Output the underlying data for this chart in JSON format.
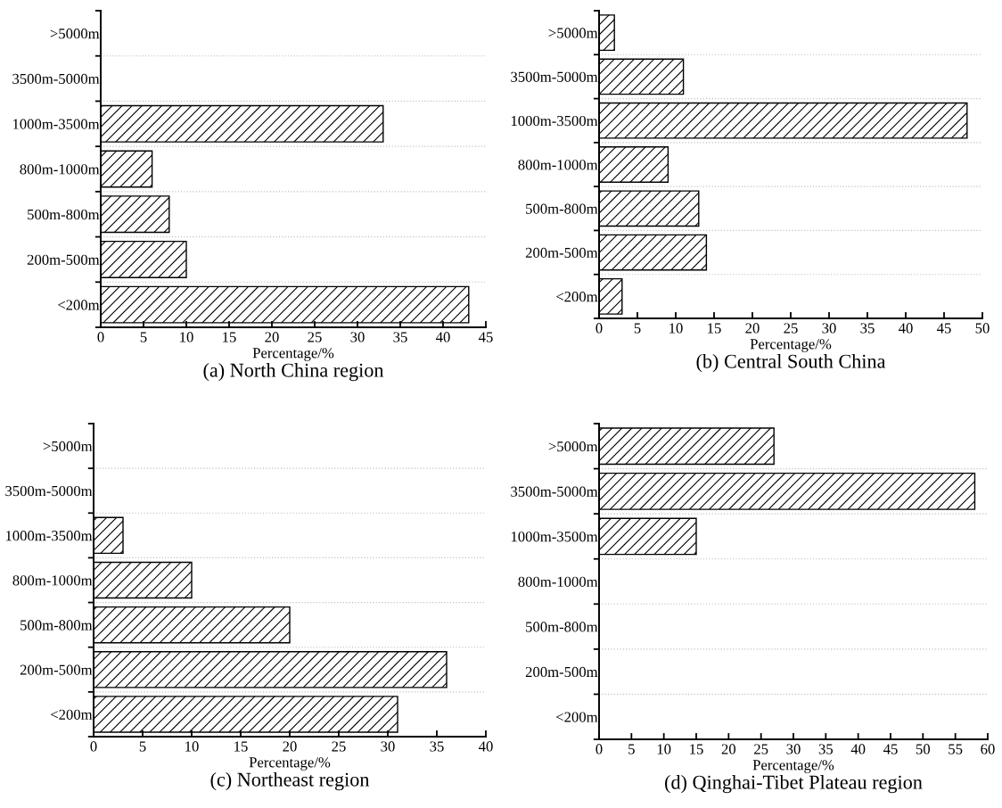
{
  "chart_data": [
    {
      "type": "bar",
      "orientation": "horizontal",
      "title": "(a) North China region",
      "xlabel": "Percentage/%",
      "categories": [
        ">5000m",
        "3500m-5000m",
        "1000m-3500m",
        "800m-1000m",
        "500m-800m",
        "200m-500m",
        "<200m"
      ],
      "values": [
        null,
        null,
        33,
        6,
        8,
        10,
        43
      ],
      "color": "#000000",
      "xlim": [
        0,
        45
      ],
      "xticks": [
        0,
        5,
        10,
        15,
        20,
        25,
        30,
        35,
        40,
        45
      ],
      "grid": "y"
    },
    {
      "type": "bar",
      "orientation": "horizontal",
      "title": "(b) Central South China",
      "xlabel": "Percentage/%",
      "categories": [
        ">5000m",
        "3500m-5000m",
        "1000m-3500m",
        "800m-1000m",
        "500m-800m",
        "200m-500m",
        "<200m"
      ],
      "values": [
        2,
        11,
        48,
        9,
        13,
        14,
        3
      ],
      "color": "#000000",
      "xlim": [
        0,
        50
      ],
      "xticks": [
        0,
        5,
        10,
        15,
        20,
        25,
        30,
        35,
        40,
        45,
        50
      ],
      "grid": "y"
    },
    {
      "type": "bar",
      "orientation": "horizontal",
      "title": "(c) Northeast region",
      "xlabel": "Percentage/%",
      "categories": [
        ">5000m",
        "3500m-5000m",
        "1000m-3500m",
        "800m-1000m",
        "500m-800m",
        "200m-500m",
        "<200m"
      ],
      "values": [
        null,
        null,
        3,
        10,
        20,
        36,
        31
      ],
      "color": "#000000",
      "xlim": [
        0,
        40
      ],
      "xticks": [
        0,
        5,
        10,
        15,
        20,
        25,
        30,
        35,
        40
      ],
      "grid": "y"
    },
    {
      "type": "bar",
      "orientation": "horizontal",
      "title": "(d) Qinghai-Tibet Plateau region",
      "xlabel": "Percentage/%",
      "categories": [
        ">5000m",
        "3500m-5000m",
        "1000m-3500m",
        "800m-1000m",
        "500m-800m",
        "200m-500m",
        "<200m"
      ],
      "values": [
        27,
        58,
        15,
        null,
        null,
        null,
        null
      ],
      "color": "#000000",
      "xlim": [
        0,
        60
      ],
      "xticks": [
        0,
        5,
        10,
        15,
        20,
        25,
        30,
        35,
        40,
        45,
        50,
        55,
        60
      ],
      "grid": "y"
    }
  ]
}
